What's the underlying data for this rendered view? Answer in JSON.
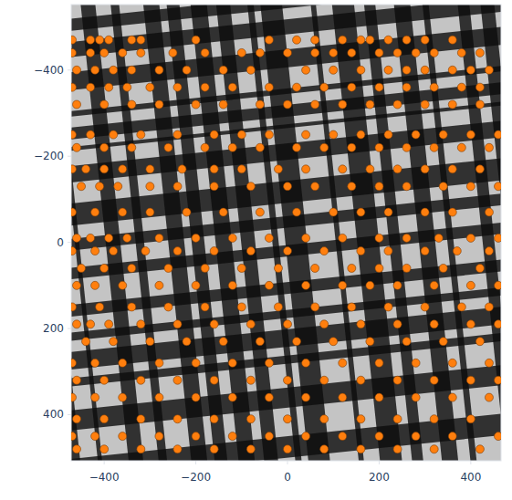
{
  "chart_data": {
    "type": "scatter",
    "color": "#ff7f0e",
    "marker": "circle",
    "grid": false,
    "xlim": [
      -472,
      466
    ],
    "ylim": [
      507,
      -552
    ],
    "xticks": [
      {
        "value": -400,
        "label": "−400"
      },
      {
        "value": -200,
        "label": "−200"
      },
      0,
      200,
      400
    ],
    "yticks": [
      {
        "value": -400,
        "label": "−400"
      },
      {
        "value": -200,
        "label": "−200"
      },
      0,
      200,
      400
    ],
    "x": [
      -470,
      -430,
      -410,
      -390,
      -340,
      -320,
      -200,
      -40,
      20,
      60,
      120,
      160,
      180,
      220,
      260,
      300,
      360,
      -470,
      -430,
      -400,
      -360,
      -320,
      -250,
      -180,
      -100,
      -60,
      0,
      60,
      100,
      140,
      200,
      240,
      280,
      320,
      380,
      420,
      -460,
      -420,
      -380,
      -340,
      -280,
      -220,
      -140,
      -80,
      40,
      100,
      160,
      220,
      260,
      300,
      360,
      400,
      440,
      -470,
      -430,
      -390,
      -350,
      -300,
      -240,
      -180,
      -120,
      -40,
      20,
      80,
      140,
      200,
      260,
      320,
      380,
      420,
      -460,
      -400,
      -340,
      -280,
      -200,
      -140,
      -60,
      0,
      60,
      120,
      180,
      240,
      300,
      360,
      420,
      -470,
      -430,
      -380,
      -320,
      -240,
      -160,
      -100,
      -40,
      40,
      100,
      160,
      220,
      280,
      340,
      400,
      460,
      -460,
      -400,
      -340,
      -260,
      -180,
      -120,
      -60,
      20,
      80,
      140,
      200,
      260,
      320,
      380,
      440,
      -470,
      -440,
      -400,
      -360,
      -300,
      -230,
      -160,
      -100,
      -20,
      40,
      120,
      180,
      240,
      300,
      360,
      420,
      -450,
      -410,
      -370,
      -300,
      -240,
      -160,
      -80,
      0,
      60,
      140,
      200,
      260,
      340,
      400,
      460,
      -470,
      -420,
      -360,
      -300,
      -220,
      -140,
      -60,
      20,
      100,
      160,
      220,
      300,
      360,
      440,
      -460,
      -430,
      -390,
      -350,
      -280,
      -200,
      -120,
      -40,
      40,
      120,
      200,
      260,
      330,
      400,
      460,
      -470,
      -420,
      -380,
      -310,
      -240,
      -160,
      -80,
      0,
      80,
      160,
      220,
      300,
      370,
      440,
      -450,
      -400,
      -340,
      -260,
      -180,
      -100,
      -20,
      60,
      140,
      200,
      260,
      340,
      420,
      -460,
      -420,
      -360,
      -280,
      -200,
      -120,
      -40,
      40,
      120,
      180,
      240,
      320,
      400,
      460,
      -470,
      -410,
      -340,
      -260,
      -180,
      -100,
      -20,
      60,
      140,
      220,
      300,
      380,
      440,
      -460,
      -430,
      -390,
      -320,
      -240,
      -160,
      -80,
      0,
      80,
      160,
      240,
      320,
      400,
      460,
      -440,
      -380,
      -300,
      -220,
      -140,
      -60,
      20,
      100,
      180,
      260,
      340,
      420,
      -470,
      -420,
      -360,
      -280,
      -200,
      -120,
      -40,
      40,
      120,
      200,
      280,
      360,
      440,
      -460,
      -400,
      -320,
      -240,
      -160,
      -80,
      0,
      80,
      160,
      240,
      320,
      400,
      460,
      -470,
      -420,
      -360,
      -280,
      -200,
      -120,
      -40,
      40,
      120,
      200,
      280,
      360,
      440,
      -460,
      -400,
      -320,
      -240,
      -160,
      -80,
      0,
      80,
      160,
      240,
      320,
      400,
      -470,
      -420,
      -360,
      -280,
      -200,
      -120,
      -40,
      40,
      120,
      200,
      280,
      360,
      460,
      -460,
      -400,
      -320,
      -240,
      -160,
      -80,
      0,
      80,
      160,
      240,
      320,
      420
    ],
    "values": [
      -470,
      -470,
      -470,
      -470,
      -470,
      -470,
      -470,
      -470,
      -470,
      -470,
      -470,
      -470,
      -470,
      -470,
      -470,
      -470,
      -470,
      -440,
      -440,
      -440,
      -440,
      -440,
      -440,
      -440,
      -440,
      -440,
      -440,
      -440,
      -440,
      -440,
      -440,
      -440,
      -440,
      -440,
      -440,
      -440,
      -400,
      -400,
      -400,
      -400,
      -400,
      -400,
      -400,
      -400,
      -400,
      -400,
      -400,
      -400,
      -400,
      -400,
      -400,
      -400,
      -400,
      -360,
      -360,
      -360,
      -360,
      -360,
      -360,
      -360,
      -360,
      -360,
      -360,
      -360,
      -360,
      -360,
      -360,
      -360,
      -360,
      -360,
      -320,
      -320,
      -320,
      -320,
      -320,
      -320,
      -320,
      -320,
      -320,
      -320,
      -320,
      -320,
      -320,
      -320,
      -320,
      -250,
      -250,
      -250,
      -250,
      -250,
      -250,
      -250,
      -250,
      -250,
      -250,
      -250,
      -250,
      -250,
      -250,
      -250,
      -250,
      -220,
      -220,
      -220,
      -220,
      -220,
      -220,
      -220,
      -220,
      -220,
      -220,
      -220,
      -220,
      -220,
      -220,
      -220,
      -170,
      -170,
      -170,
      -170,
      -170,
      -170,
      -170,
      -170,
      -170,
      -170,
      -170,
      -170,
      -170,
      -170,
      -170,
      -170,
      -130,
      -130,
      -130,
      -130,
      -130,
      -130,
      -130,
      -130,
      -130,
      -130,
      -130,
      -130,
      -130,
      -130,
      -130,
      -70,
      -70,
      -70,
      -70,
      -70,
      -70,
      -70,
      -70,
      -70,
      -70,
      -70,
      -70,
      -70,
      -70,
      -10,
      -10,
      -10,
      -10,
      -10,
      -10,
      -10,
      -10,
      -10,
      -10,
      -10,
      -10,
      -10,
      -10,
      -10,
      20,
      20,
      20,
      20,
      20,
      20,
      20,
      20,
      20,
      20,
      20,
      20,
      20,
      20,
      60,
      60,
      60,
      60,
      60,
      60,
      60,
      60,
      60,
      60,
      60,
      60,
      60,
      100,
      100,
      100,
      100,
      100,
      100,
      100,
      100,
      100,
      100,
      100,
      100,
      100,
      100,
      150,
      150,
      150,
      150,
      150,
      150,
      150,
      150,
      150,
      150,
      150,
      150,
      150,
      190,
      190,
      190,
      190,
      190,
      190,
      190,
      190,
      190,
      190,
      190,
      190,
      190,
      190,
      230,
      230,
      230,
      230,
      230,
      230,
      230,
      230,
      230,
      230,
      230,
      230,
      280,
      280,
      280,
      280,
      280,
      280,
      280,
      280,
      280,
      280,
      280,
      280,
      280,
      320,
      320,
      320,
      320,
      320,
      320,
      320,
      320,
      320,
      320,
      320,
      320,
      320,
      360,
      360,
      360,
      360,
      360,
      360,
      360,
      360,
      360,
      360,
      360,
      360,
      360,
      410,
      410,
      410,
      410,
      410,
      410,
      410,
      410,
      410,
      410,
      410,
      410,
      450,
      450,
      450,
      450,
      450,
      450,
      450,
      450,
      450,
      450,
      450,
      450,
      450,
      480,
      480,
      480,
      480,
      480,
      480,
      480,
      480,
      480,
      480,
      480,
      480
    ]
  }
}
